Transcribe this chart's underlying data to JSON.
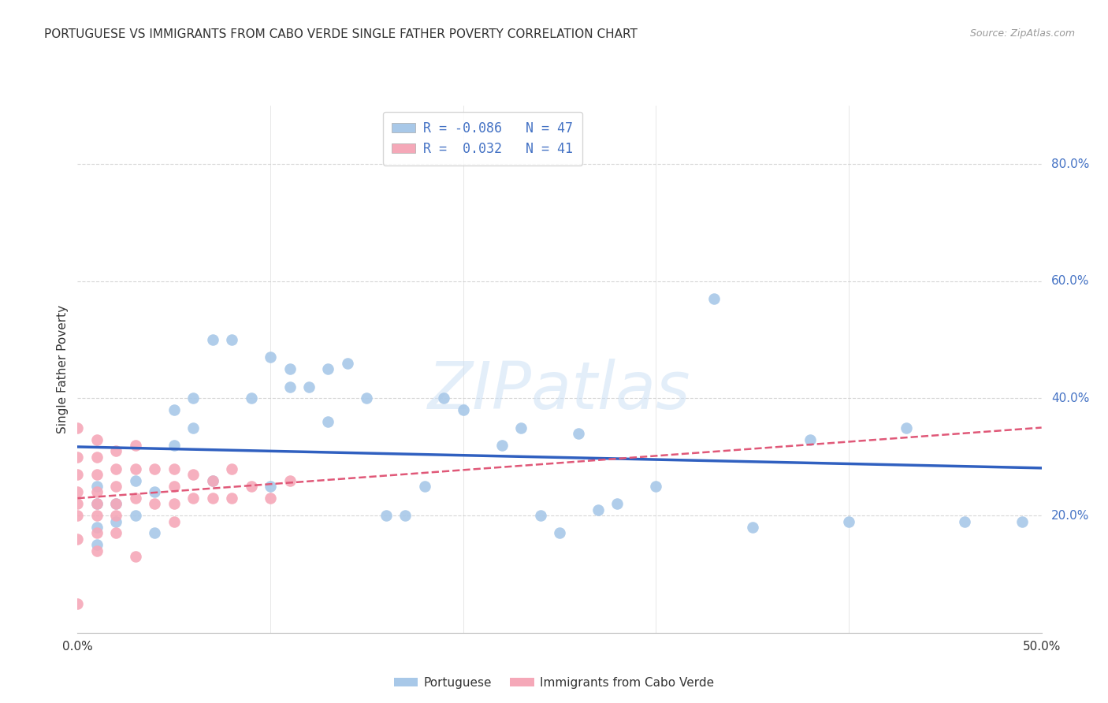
{
  "title": "PORTUGUESE VS IMMIGRANTS FROM CABO VERDE SINGLE FATHER POVERTY CORRELATION CHART",
  "source": "Source: ZipAtlas.com",
  "ylabel": "Single Father Poverty",
  "right_yticks": [
    "80.0%",
    "60.0%",
    "40.0%",
    "20.0%"
  ],
  "right_ytick_vals": [
    0.8,
    0.6,
    0.4,
    0.2
  ],
  "xlim": [
    0.0,
    0.5
  ],
  "ylim": [
    0.0,
    0.9
  ],
  "portuguese_R": -0.086,
  "portuguese_N": 47,
  "caboverde_R": 0.032,
  "caboverde_N": 41,
  "portuguese_color": "#a8c8e8",
  "caboverde_color": "#f5a8b8",
  "portuguese_line_color": "#3060c0",
  "caboverde_line_color": "#e05878",
  "legend_label_portuguese": "Portuguese",
  "legend_label_caboverde": "Immigrants from Cabo Verde",
  "watermark": "ZIPatlas",
  "portuguese_x": [
    0.01,
    0.01,
    0.01,
    0.01,
    0.02,
    0.02,
    0.03,
    0.03,
    0.04,
    0.04,
    0.05,
    0.05,
    0.06,
    0.06,
    0.07,
    0.07,
    0.08,
    0.09,
    0.1,
    0.1,
    0.11,
    0.11,
    0.12,
    0.13,
    0.13,
    0.14,
    0.15,
    0.16,
    0.17,
    0.18,
    0.19,
    0.2,
    0.22,
    0.23,
    0.24,
    0.25,
    0.26,
    0.27,
    0.28,
    0.3,
    0.33,
    0.35,
    0.38,
    0.4,
    0.43,
    0.46,
    0.49
  ],
  "portuguese_y": [
    0.25,
    0.22,
    0.18,
    0.15,
    0.22,
    0.19,
    0.26,
    0.2,
    0.24,
    0.17,
    0.38,
    0.32,
    0.4,
    0.35,
    0.5,
    0.26,
    0.5,
    0.4,
    0.47,
    0.25,
    0.45,
    0.42,
    0.42,
    0.45,
    0.36,
    0.46,
    0.4,
    0.2,
    0.2,
    0.25,
    0.4,
    0.38,
    0.32,
    0.35,
    0.2,
    0.17,
    0.34,
    0.21,
    0.22,
    0.25,
    0.57,
    0.18,
    0.33,
    0.19,
    0.35,
    0.19,
    0.19
  ],
  "caboverde_x": [
    0.0,
    0.0,
    0.0,
    0.0,
    0.0,
    0.0,
    0.0,
    0.0,
    0.01,
    0.01,
    0.01,
    0.01,
    0.01,
    0.01,
    0.01,
    0.01,
    0.02,
    0.02,
    0.02,
    0.02,
    0.02,
    0.02,
    0.03,
    0.03,
    0.03,
    0.03,
    0.04,
    0.04,
    0.05,
    0.05,
    0.05,
    0.05,
    0.06,
    0.06,
    0.07,
    0.07,
    0.08,
    0.08,
    0.09,
    0.1,
    0.11
  ],
  "caboverde_y": [
    0.35,
    0.3,
    0.27,
    0.24,
    0.22,
    0.2,
    0.16,
    0.05,
    0.33,
    0.3,
    0.27,
    0.24,
    0.22,
    0.2,
    0.17,
    0.14,
    0.31,
    0.28,
    0.25,
    0.22,
    0.2,
    0.17,
    0.32,
    0.28,
    0.23,
    0.13,
    0.28,
    0.22,
    0.28,
    0.25,
    0.22,
    0.19,
    0.27,
    0.23,
    0.26,
    0.23,
    0.28,
    0.23,
    0.25,
    0.23,
    0.26
  ],
  "grid_color": "#cccccc",
  "background_color": "#ffffff",
  "title_fontsize": 11,
  "marker_size": 110
}
